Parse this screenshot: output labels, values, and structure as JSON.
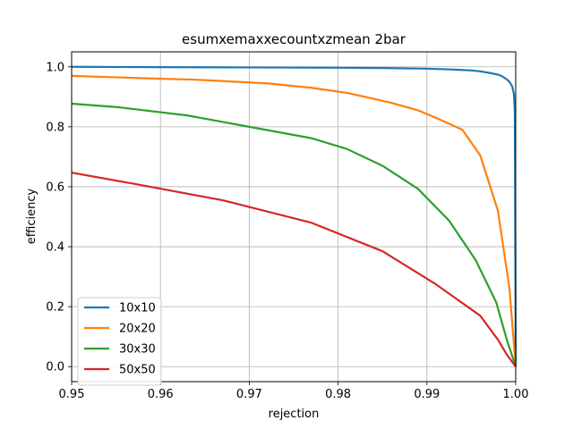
{
  "chart_data": {
    "type": "line",
    "title": "esumxemaxxecountxzmean 2bar",
    "xlabel": "rejection",
    "ylabel": "efficiency",
    "xlim": [
      0.95,
      1.0
    ],
    "ylim": [
      -0.05,
      1.05
    ],
    "xticks": [
      "0.95",
      "0.96",
      "0.97",
      "0.98",
      "0.99",
      "1.00"
    ],
    "yticks": [
      "0.0",
      "0.2",
      "0.4",
      "0.6",
      "0.8",
      "1.0"
    ],
    "grid": true,
    "legend_position": "lower-left",
    "series": [
      {
        "name": "10x10",
        "color": "#1f77b4",
        "x": [
          0.95,
          0.96,
          0.97,
          0.98,
          0.985,
          0.99,
          0.993,
          0.995,
          0.996,
          0.997,
          0.998,
          0.9985,
          0.999,
          0.9993,
          0.9996,
          0.9998,
          0.9999,
          1.0
        ],
        "y": [
          1.0,
          0.999,
          0.998,
          0.997,
          0.996,
          0.994,
          0.991,
          0.988,
          0.985,
          0.98,
          0.974,
          0.968,
          0.958,
          0.95,
          0.935,
          0.91,
          0.85,
          0.0
        ]
      },
      {
        "name": "20x20",
        "color": "#ff7f0e",
        "x": [
          0.95,
          0.958,
          0.964,
          0.972,
          0.977,
          0.981,
          0.983,
          0.986,
          0.989,
          0.991,
          0.994,
          0.996,
          0.998,
          0.9993,
          1.0
        ],
        "y": [
          0.97,
          0.962,
          0.957,
          0.945,
          0.93,
          0.913,
          0.9,
          0.88,
          0.855,
          0.83,
          0.79,
          0.705,
          0.52,
          0.26,
          0.0
        ]
      },
      {
        "name": "30x30",
        "color": "#2ca02c",
        "x": [
          0.95,
          0.955,
          0.963,
          0.97,
          0.977,
          0.981,
          0.985,
          0.989,
          0.9925,
          0.9955,
          0.9978,
          0.999,
          1.0
        ],
        "y": [
          0.877,
          0.866,
          0.838,
          0.8,
          0.762,
          0.726,
          0.67,
          0.593,
          0.487,
          0.355,
          0.215,
          0.09,
          0.0
        ]
      },
      {
        "name": "50x50",
        "color": "#d62728",
        "x": [
          0.95,
          0.957,
          0.967,
          0.977,
          0.985,
          0.991,
          0.996,
          0.998,
          0.999,
          1.0
        ],
        "y": [
          0.647,
          0.61,
          0.555,
          0.48,
          0.385,
          0.275,
          0.17,
          0.09,
          0.04,
          0.0
        ]
      }
    ]
  }
}
